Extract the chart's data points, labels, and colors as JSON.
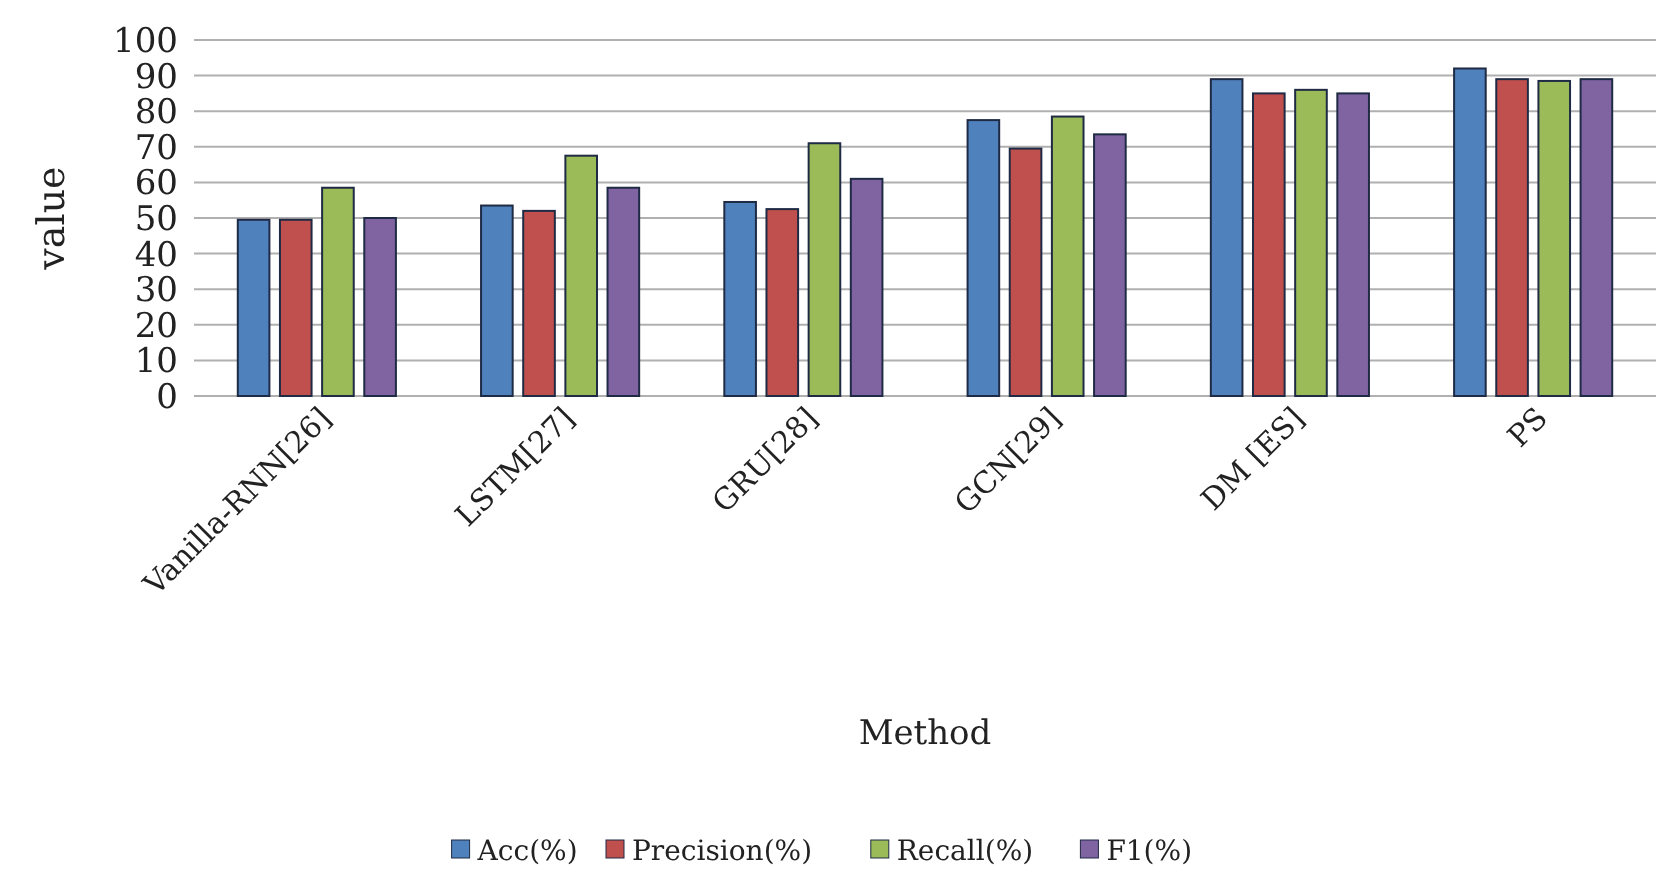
{
  "chart_data": {
    "type": "bar",
    "xlabel": "Method",
    "ylabel": "value",
    "categories": [
      "Vanilla-RNN[26]",
      "LSTM[27]",
      "GRU[28]",
      "GCN[29]",
      "DM [ES]",
      "PS"
    ],
    "series": [
      {
        "name": "Acc(%)",
        "color": "#4f81bd",
        "values": [
          49.5,
          53.5,
          54.5,
          77.5,
          89,
          92
        ]
      },
      {
        "name": "Precision(%)",
        "color": "#c0504d",
        "values": [
          49.5,
          52,
          52.5,
          69.5,
          85,
          89
        ]
      },
      {
        "name": "Recall(%)",
        "color": "#9bbb59",
        "values": [
          58.5,
          67.5,
          71,
          78.5,
          86,
          88.5
        ]
      },
      {
        "name": "F1(%)",
        "color": "#8064a2",
        "values": [
          50,
          58.5,
          61,
          73.5,
          85,
          89
        ]
      }
    ],
    "ylim": [
      0,
      100
    ],
    "yticks": [
      0,
      10,
      20,
      30,
      40,
      50,
      60,
      70,
      80,
      90,
      100
    ],
    "grid": "y",
    "legend": "bottom"
  }
}
